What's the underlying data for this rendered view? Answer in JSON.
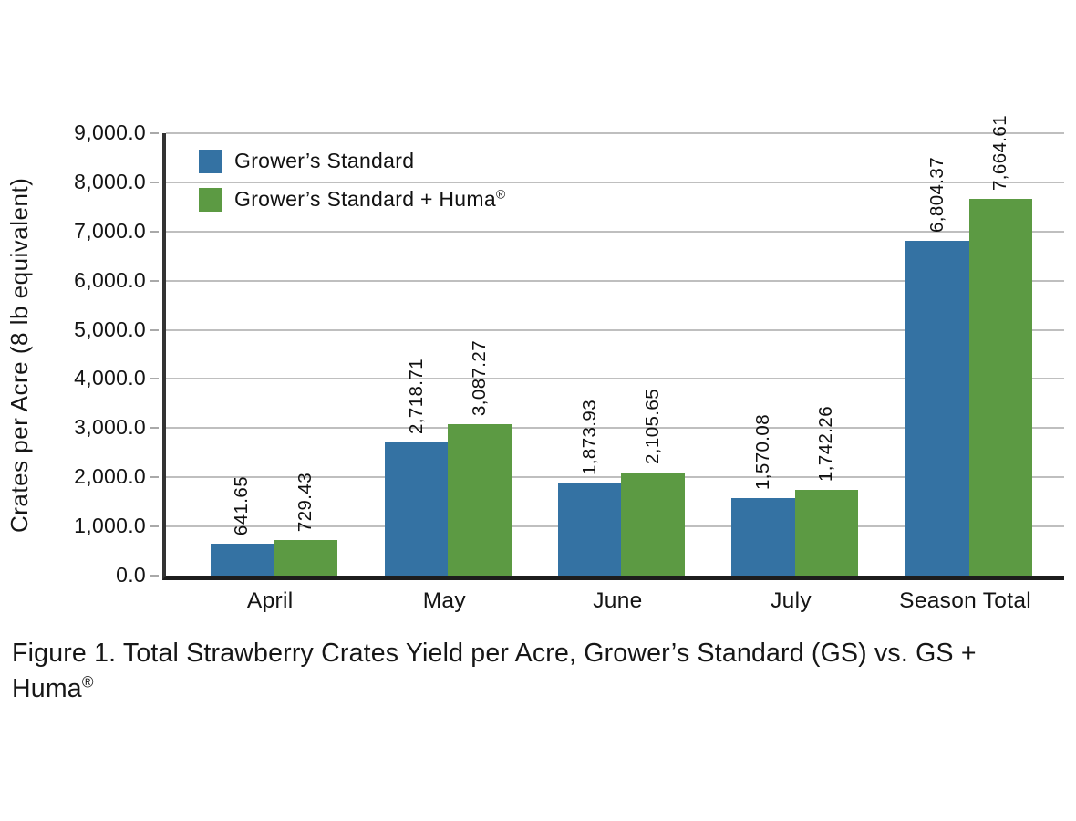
{
  "figure": {
    "caption_line1": "Figure 1. Total Strawberry Crates Yield per Acre, Grower’s Standard (GS) vs. GS +",
    "caption_line2_base": "Huma",
    "caption_line2_sup": "®"
  },
  "chart_data": {
    "type": "bar",
    "title": "Figure 1. Total Strawberry Crates Yield per Acre, Grower’s Standard (GS) vs. GS + Huma®",
    "xlabel": "",
    "ylabel": "Crates per Acre (8 lb equivalent)",
    "ylim": [
      0,
      9000
    ],
    "yticks": [
      0,
      1000,
      2000,
      3000,
      4000,
      5000,
      6000,
      7000,
      8000,
      9000
    ],
    "ytick_labels": [
      "0.0",
      "1,000.0",
      "2,000.0",
      "3,000.0",
      "4,000.0",
      "5,000.0",
      "6,000.0",
      "7,000.0",
      "8,000.0",
      "9,000.0"
    ],
    "categories": [
      "April",
      "May",
      "June",
      "July",
      "Season Total"
    ],
    "series": [
      {
        "name": "Grower’s Standard",
        "color": "#3472A3",
        "values": [
          641.65,
          2718.71,
          1873.93,
          1570.08,
          6804.37
        ],
        "labels": [
          "641.65",
          "2,718.71",
          "1,873.93",
          "1,570.08",
          "6,804.37"
        ]
      },
      {
        "name": "Grower’s Standard + Huma®",
        "color": "#5C9A43",
        "values": [
          729.43,
          3087.27,
          2105.65,
          1742.26,
          7664.61
        ],
        "labels": [
          "729.43",
          "3,087.27",
          "2,105.65",
          "1,742.26",
          "7,664.61"
        ]
      }
    ],
    "grid": true,
    "gridline_color": "#BFBFBF",
    "axis_color": "#2B2B2B",
    "legend_position": "top-left-inside"
  },
  "colors": {
    "blue": "#3472A3",
    "green": "#5C9A43",
    "gridline": "#BFBFBF",
    "axis": "#2B2B2B",
    "text": "#111111"
  }
}
